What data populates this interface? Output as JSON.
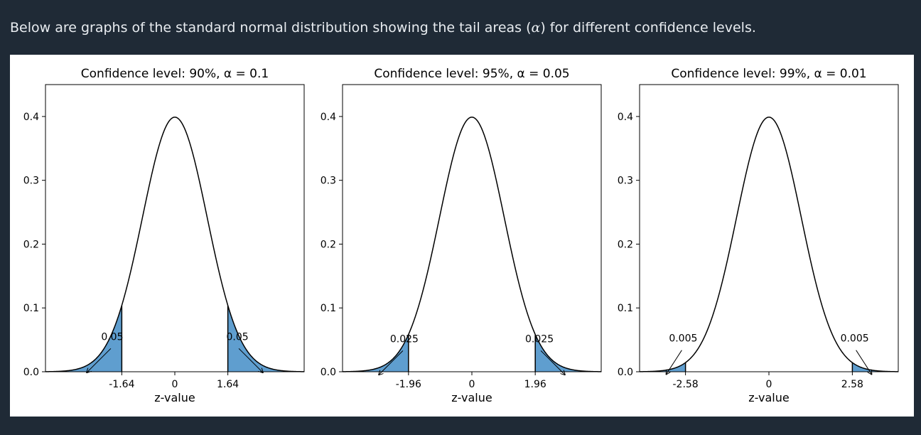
{
  "intro": {
    "prefix": "Below are graphs of the standard normal distribution showing the tail areas (",
    "symbol": "α",
    "suffix": ") for different confidence levels."
  },
  "chart_data": [
    {
      "type": "area",
      "title": "Confidence level: 90%, α = 0.1",
      "confidence_level": "90%",
      "alpha": 0.1,
      "xlabel": "z-value",
      "ylabel": "",
      "xlim": [
        -4,
        4
      ],
      "ylim": [
        0,
        0.45
      ],
      "x_ticks": [
        -1.64,
        0,
        1.64
      ],
      "x_tick_labels": [
        "-1.64",
        "0",
        "1.64"
      ],
      "y_ticks": [
        0.0,
        0.1,
        0.2,
        0.3,
        0.4
      ],
      "y_tick_labels": [
        "0.0",
        "0.1",
        "0.2",
        "0.3",
        "0.4"
      ],
      "critical_z": 1.64,
      "tail_area": 0.05,
      "tail_labels": [
        "0.05",
        "0.05"
      ],
      "curve_color": "#000000",
      "fill_color": "#5f9ecf"
    },
    {
      "type": "area",
      "title": "Confidence level: 95%, α = 0.05",
      "confidence_level": "95%",
      "alpha": 0.05,
      "xlabel": "z-value",
      "ylabel": "",
      "xlim": [
        -4,
        4
      ],
      "ylim": [
        0,
        0.45
      ],
      "x_ticks": [
        -1.96,
        0,
        1.96
      ],
      "x_tick_labels": [
        "-1.96",
        "0",
        "1.96"
      ],
      "y_ticks": [
        0.0,
        0.1,
        0.2,
        0.3,
        0.4
      ],
      "y_tick_labels": [
        "0.0",
        "0.1",
        "0.2",
        "0.3",
        "0.4"
      ],
      "critical_z": 1.96,
      "tail_area": 0.025,
      "tail_labels": [
        "0.025",
        "0.025"
      ],
      "curve_color": "#000000",
      "fill_color": "#5f9ecf"
    },
    {
      "type": "area",
      "title": "Confidence level: 99%, α = 0.01",
      "confidence_level": "99%",
      "alpha": 0.01,
      "xlabel": "z-value",
      "ylabel": "",
      "xlim": [
        -4,
        4
      ],
      "ylim": [
        0,
        0.45
      ],
      "x_ticks": [
        -2.58,
        0,
        2.58
      ],
      "x_tick_labels": [
        "-2.58",
        "0",
        "2.58"
      ],
      "y_ticks": [
        0.0,
        0.1,
        0.2,
        0.3,
        0.4
      ],
      "y_tick_labels": [
        "0.0",
        "0.1",
        "0.2",
        "0.3",
        "0.4"
      ],
      "critical_z": 2.58,
      "tail_area": 0.005,
      "tail_labels": [
        "0.005",
        "0.005"
      ],
      "curve_color": "#000000",
      "fill_color": "#5f9ecf"
    }
  ]
}
